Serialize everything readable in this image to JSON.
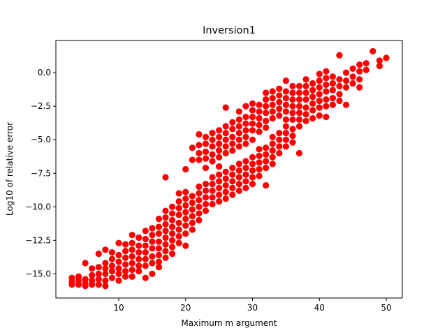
{
  "chart_data": {
    "type": "scatter",
    "title": "Inversion1",
    "xlabel": "Maximum m argument",
    "ylabel": "Log10 of relative error",
    "xlim": [
      0.6,
      52.4
    ],
    "ylim": [
      -16.8,
      2.4
    ],
    "x_ticks": [
      10,
      20,
      30,
      40,
      50
    ],
    "x_tick_labels": [
      "10",
      "20",
      "30",
      "40",
      "50"
    ],
    "y_ticks": [
      -15.0,
      -12.5,
      -10.0,
      -7.5,
      -5.0,
      -2.5,
      0.0
    ],
    "y_tick_labels": [
      "−15.0",
      "−12.5",
      "−10.0",
      "−7.5",
      "−5.0",
      "−2.5",
      "0.0"
    ],
    "grid": false,
    "marker_color": "#ff0000",
    "points": [
      {
        "x": 3,
        "y": -15.3
      },
      {
        "x": 3,
        "y": -15.6
      },
      {
        "x": 3,
        "y": -15.8
      },
      {
        "x": 4,
        "y": -15.2
      },
      {
        "x": 4,
        "y": -15.5
      },
      {
        "x": 4,
        "y": -15.8
      },
      {
        "x": 5,
        "y": -14.2
      },
      {
        "x": 5,
        "y": -15.4
      },
      {
        "x": 5,
        "y": -15.7
      },
      {
        "x": 5,
        "y": -15.9
      },
      {
        "x": 6,
        "y": -14.6
      },
      {
        "x": 6,
        "y": -15.1
      },
      {
        "x": 6,
        "y": -15.5
      },
      {
        "x": 6,
        "y": -15.8
      },
      {
        "x": 7,
        "y": -13.5
      },
      {
        "x": 7,
        "y": -14.5
      },
      {
        "x": 7,
        "y": -15.0
      },
      {
        "x": 7,
        "y": -15.4
      },
      {
        "x": 7,
        "y": -15.8
      },
      {
        "x": 8,
        "y": -13.2
      },
      {
        "x": 8,
        "y": -14.2
      },
      {
        "x": 8,
        "y": -14.6
      },
      {
        "x": 8,
        "y": -15.0
      },
      {
        "x": 8,
        "y": -15.5
      },
      {
        "x": 8,
        "y": -15.9
      },
      {
        "x": 9,
        "y": -13.4
      },
      {
        "x": 9,
        "y": -13.9
      },
      {
        "x": 9,
        "y": -14.4
      },
      {
        "x": 9,
        "y": -14.8
      },
      {
        "x": 9,
        "y": -15.3
      },
      {
        "x": 10,
        "y": -12.7
      },
      {
        "x": 10,
        "y": -13.6
      },
      {
        "x": 10,
        "y": -14.1
      },
      {
        "x": 10,
        "y": -14.6
      },
      {
        "x": 10,
        "y": -15.0
      },
      {
        "x": 10,
        "y": -15.5
      },
      {
        "x": 11,
        "y": -12.8
      },
      {
        "x": 11,
        "y": -13.3
      },
      {
        "x": 11,
        "y": -13.8
      },
      {
        "x": 11,
        "y": -14.3
      },
      {
        "x": 11,
        "y": -14.8
      },
      {
        "x": 11,
        "y": -15.2
      },
      {
        "x": 12,
        "y": -12.1
      },
      {
        "x": 12,
        "y": -12.7
      },
      {
        "x": 12,
        "y": -13.2
      },
      {
        "x": 12,
        "y": -13.7
      },
      {
        "x": 12,
        "y": -14.2
      },
      {
        "x": 12,
        "y": -14.7
      },
      {
        "x": 12,
        "y": -15.2
      },
      {
        "x": 13,
        "y": -12.3
      },
      {
        "x": 13,
        "y": -12.9
      },
      {
        "x": 13,
        "y": -13.4
      },
      {
        "x": 13,
        "y": -13.9
      },
      {
        "x": 13,
        "y": -14.4
      },
      {
        "x": 13,
        "y": -14.8
      },
      {
        "x": 14,
        "y": -11.8
      },
      {
        "x": 14,
        "y": -12.4
      },
      {
        "x": 14,
        "y": -12.9
      },
      {
        "x": 14,
        "y": -13.4
      },
      {
        "x": 14,
        "y": -13.9
      },
      {
        "x": 14,
        "y": -14.4
      },
      {
        "x": 14,
        "y": -15.3
      },
      {
        "x": 15,
        "y": -11.6
      },
      {
        "x": 15,
        "y": -12.1
      },
      {
        "x": 15,
        "y": -12.6
      },
      {
        "x": 15,
        "y": -13.1
      },
      {
        "x": 15,
        "y": -13.7
      },
      {
        "x": 15,
        "y": -14.2
      },
      {
        "x": 15,
        "y": -15.0
      },
      {
        "x": 16,
        "y": -10.9
      },
      {
        "x": 16,
        "y": -11.5
      },
      {
        "x": 16,
        "y": -12.0
      },
      {
        "x": 16,
        "y": -12.6
      },
      {
        "x": 16,
        "y": -13.1
      },
      {
        "x": 16,
        "y": -13.6
      },
      {
        "x": 16,
        "y": -14.1
      },
      {
        "x": 16,
        "y": -14.5
      },
      {
        "x": 17,
        "y": -7.8
      },
      {
        "x": 17,
        "y": -10.3
      },
      {
        "x": 17,
        "y": -10.8
      },
      {
        "x": 17,
        "y": -11.3
      },
      {
        "x": 17,
        "y": -11.8
      },
      {
        "x": 17,
        "y": -12.3
      },
      {
        "x": 17,
        "y": -12.8
      },
      {
        "x": 17,
        "y": -13.3
      },
      {
        "x": 17,
        "y": -13.8
      },
      {
        "x": 18,
        "y": -10.0
      },
      {
        "x": 18,
        "y": -10.5
      },
      {
        "x": 18,
        "y": -11.0
      },
      {
        "x": 18,
        "y": -11.5
      },
      {
        "x": 18,
        "y": -12.0
      },
      {
        "x": 18,
        "y": -12.5
      },
      {
        "x": 18,
        "y": -13.0
      },
      {
        "x": 18,
        "y": -13.5
      },
      {
        "x": 19,
        "y": -9.0
      },
      {
        "x": 19,
        "y": -9.6
      },
      {
        "x": 19,
        "y": -10.1
      },
      {
        "x": 19,
        "y": -10.6
      },
      {
        "x": 19,
        "y": -11.2
      },
      {
        "x": 19,
        "y": -11.7
      },
      {
        "x": 19,
        "y": -12.2
      },
      {
        "x": 19,
        "y": -12.7
      },
      {
        "x": 20,
        "y": -7.2
      },
      {
        "x": 20,
        "y": -8.9
      },
      {
        "x": 20,
        "y": -9.4
      },
      {
        "x": 20,
        "y": -9.9
      },
      {
        "x": 20,
        "y": -10.4
      },
      {
        "x": 20,
        "y": -10.9
      },
      {
        "x": 20,
        "y": -11.4
      },
      {
        "x": 20,
        "y": -12.0
      },
      {
        "x": 20,
        "y": -12.9
      },
      {
        "x": 21,
        "y": -5.6
      },
      {
        "x": 21,
        "y": -6.5
      },
      {
        "x": 21,
        "y": -9.2
      },
      {
        "x": 21,
        "y": -9.7
      },
      {
        "x": 21,
        "y": -10.2
      },
      {
        "x": 21,
        "y": -10.7
      },
      {
        "x": 21,
        "y": -11.2
      },
      {
        "x": 21,
        "y": -11.7
      },
      {
        "x": 22,
        "y": -4.6
      },
      {
        "x": 22,
        "y": -5.4
      },
      {
        "x": 22,
        "y": -6.0
      },
      {
        "x": 22,
        "y": -6.5
      },
      {
        "x": 22,
        "y": -8.5
      },
      {
        "x": 22,
        "y": -9.0
      },
      {
        "x": 22,
        "y": -9.5
      },
      {
        "x": 22,
        "y": -10.0
      },
      {
        "x": 22,
        "y": -10.5
      },
      {
        "x": 22,
        "y": -11.0
      },
      {
        "x": 23,
        "y": -4.8
      },
      {
        "x": 23,
        "y": -5.3
      },
      {
        "x": 23,
        "y": -5.9
      },
      {
        "x": 23,
        "y": -6.4
      },
      {
        "x": 23,
        "y": -7.1
      },
      {
        "x": 23,
        "y": -8.3
      },
      {
        "x": 23,
        "y": -8.8
      },
      {
        "x": 23,
        "y": -9.3
      },
      {
        "x": 23,
        "y": -9.8
      },
      {
        "x": 23,
        "y": -10.3
      },
      {
        "x": 24,
        "y": -4.5
      },
      {
        "x": 24,
        "y": -5.0
      },
      {
        "x": 24,
        "y": -5.5
      },
      {
        "x": 24,
        "y": -6.1
      },
      {
        "x": 24,
        "y": -6.6
      },
      {
        "x": 24,
        "y": -7.8
      },
      {
        "x": 24,
        "y": -8.3
      },
      {
        "x": 24,
        "y": -8.8
      },
      {
        "x": 24,
        "y": -9.3
      },
      {
        "x": 24,
        "y": -9.8
      },
      {
        "x": 25,
        "y": -4.3
      },
      {
        "x": 25,
        "y": -4.8
      },
      {
        "x": 25,
        "y": -5.3
      },
      {
        "x": 25,
        "y": -5.8
      },
      {
        "x": 25,
        "y": -6.3
      },
      {
        "x": 25,
        "y": -7.0
      },
      {
        "x": 25,
        "y": -7.6
      },
      {
        "x": 25,
        "y": -8.1
      },
      {
        "x": 25,
        "y": -8.6
      },
      {
        "x": 25,
        "y": -9.1
      },
      {
        "x": 25,
        "y": -9.6
      },
      {
        "x": 26,
        "y": -2.6
      },
      {
        "x": 26,
        "y": -4.0
      },
      {
        "x": 26,
        "y": -4.5
      },
      {
        "x": 26,
        "y": -5.0
      },
      {
        "x": 26,
        "y": -5.5
      },
      {
        "x": 26,
        "y": -6.0
      },
      {
        "x": 26,
        "y": -7.4
      },
      {
        "x": 26,
        "y": -7.9
      },
      {
        "x": 26,
        "y": -8.4
      },
      {
        "x": 26,
        "y": -8.9
      },
      {
        "x": 26,
        "y": -9.4
      },
      {
        "x": 27,
        "y": -3.7
      },
      {
        "x": 27,
        "y": -4.2
      },
      {
        "x": 27,
        "y": -4.8
      },
      {
        "x": 27,
        "y": -5.3
      },
      {
        "x": 27,
        "y": -5.8
      },
      {
        "x": 27,
        "y": -7.1
      },
      {
        "x": 27,
        "y": -7.6
      },
      {
        "x": 27,
        "y": -8.1
      },
      {
        "x": 27,
        "y": -8.6
      },
      {
        "x": 27,
        "y": -9.1
      },
      {
        "x": 28,
        "y": -2.9
      },
      {
        "x": 28,
        "y": -3.5
      },
      {
        "x": 28,
        "y": -4.0
      },
      {
        "x": 28,
        "y": -4.5
      },
      {
        "x": 28,
        "y": -5.0
      },
      {
        "x": 28,
        "y": -5.5
      },
      {
        "x": 28,
        "y": -6.8
      },
      {
        "x": 28,
        "y": -7.3
      },
      {
        "x": 28,
        "y": -7.8
      },
      {
        "x": 28,
        "y": -8.3
      },
      {
        "x": 28,
        "y": -8.8
      },
      {
        "x": 29,
        "y": -2.5
      },
      {
        "x": 29,
        "y": -3.3
      },
      {
        "x": 29,
        "y": -3.8
      },
      {
        "x": 29,
        "y": -4.3
      },
      {
        "x": 29,
        "y": -4.8
      },
      {
        "x": 29,
        "y": -5.3
      },
      {
        "x": 29,
        "y": -6.6
      },
      {
        "x": 29,
        "y": -7.1
      },
      {
        "x": 29,
        "y": -7.6
      },
      {
        "x": 29,
        "y": -8.1
      },
      {
        "x": 29,
        "y": -8.6
      },
      {
        "x": 30,
        "y": -2.3
      },
      {
        "x": 30,
        "y": -2.8
      },
      {
        "x": 30,
        "y": -3.3
      },
      {
        "x": 30,
        "y": -3.8
      },
      {
        "x": 30,
        "y": -4.3
      },
      {
        "x": 30,
        "y": -5.0
      },
      {
        "x": 30,
        "y": -6.3
      },
      {
        "x": 30,
        "y": -6.8
      },
      {
        "x": 30,
        "y": -7.3
      },
      {
        "x": 30,
        "y": -7.8
      },
      {
        "x": 30,
        "y": -8.3
      },
      {
        "x": 31,
        "y": -2.4
      },
      {
        "x": 31,
        "y": -2.9
      },
      {
        "x": 31,
        "y": -3.4
      },
      {
        "x": 31,
        "y": -3.9
      },
      {
        "x": 31,
        "y": -4.4
      },
      {
        "x": 31,
        "y": -5.7
      },
      {
        "x": 31,
        "y": -6.2
      },
      {
        "x": 31,
        "y": -6.7
      },
      {
        "x": 31,
        "y": -7.2
      },
      {
        "x": 31,
        "y": -7.7
      },
      {
        "x": 32,
        "y": -1.5
      },
      {
        "x": 32,
        "y": -2.0
      },
      {
        "x": 32,
        "y": -2.5
      },
      {
        "x": 32,
        "y": -3.0
      },
      {
        "x": 32,
        "y": -3.6
      },
      {
        "x": 32,
        "y": -4.1
      },
      {
        "x": 32,
        "y": -5.6
      },
      {
        "x": 32,
        "y": -6.1
      },
      {
        "x": 32,
        "y": -6.6
      },
      {
        "x": 32,
        "y": -7.1
      },
      {
        "x": 32,
        "y": -8.4
      },
      {
        "x": 33,
        "y": -1.4
      },
      {
        "x": 33,
        "y": -1.9
      },
      {
        "x": 33,
        "y": -2.4
      },
      {
        "x": 33,
        "y": -2.9
      },
      {
        "x": 33,
        "y": -3.4
      },
      {
        "x": 33,
        "y": -4.8
      },
      {
        "x": 33,
        "y": -5.3
      },
      {
        "x": 33,
        "y": -5.8
      },
      {
        "x": 33,
        "y": -6.3
      },
      {
        "x": 33,
        "y": -6.8
      },
      {
        "x": 34,
        "y": -1.2
      },
      {
        "x": 34,
        "y": -1.7
      },
      {
        "x": 34,
        "y": -2.2
      },
      {
        "x": 34,
        "y": -2.7
      },
      {
        "x": 34,
        "y": -3.2
      },
      {
        "x": 34,
        "y": -4.5
      },
      {
        "x": 34,
        "y": -5.0
      },
      {
        "x": 34,
        "y": -5.5
      },
      {
        "x": 34,
        "y": -6.0
      },
      {
        "x": 35,
        "y": -0.6
      },
      {
        "x": 35,
        "y": -1.4
      },
      {
        "x": 35,
        "y": -1.9
      },
      {
        "x": 35,
        "y": -2.4
      },
      {
        "x": 35,
        "y": -2.9
      },
      {
        "x": 35,
        "y": -3.5
      },
      {
        "x": 35,
        "y": -4.0
      },
      {
        "x": 35,
        "y": -4.5
      },
      {
        "x": 35,
        "y": -5.0
      },
      {
        "x": 35,
        "y": -5.5
      },
      {
        "x": 36,
        "y": -1.0
      },
      {
        "x": 36,
        "y": -1.5
      },
      {
        "x": 36,
        "y": -2.0
      },
      {
        "x": 36,
        "y": -2.5
      },
      {
        "x": 36,
        "y": -3.0
      },
      {
        "x": 36,
        "y": -3.5
      },
      {
        "x": 36,
        "y": -4.2
      },
      {
        "x": 36,
        "y": -4.7
      },
      {
        "x": 36,
        "y": -5.2
      },
      {
        "x": 37,
        "y": -1.0
      },
      {
        "x": 37,
        "y": -1.5
      },
      {
        "x": 37,
        "y": -2.0
      },
      {
        "x": 37,
        "y": -2.5
      },
      {
        "x": 37,
        "y": -3.0
      },
      {
        "x": 37,
        "y": -3.5
      },
      {
        "x": 37,
        "y": -4.0
      },
      {
        "x": 37,
        "y": -6.0
      },
      {
        "x": 38,
        "y": -0.5
      },
      {
        "x": 38,
        "y": -1.0
      },
      {
        "x": 38,
        "y": -1.5
      },
      {
        "x": 38,
        "y": -2.0
      },
      {
        "x": 38,
        "y": -2.6
      },
      {
        "x": 38,
        "y": -3.1
      },
      {
        "x": 38,
        "y": -3.6
      },
      {
        "x": 39,
        "y": -0.8
      },
      {
        "x": 39,
        "y": -1.3
      },
      {
        "x": 39,
        "y": -1.8
      },
      {
        "x": 39,
        "y": -2.3
      },
      {
        "x": 39,
        "y": -2.8
      },
      {
        "x": 39,
        "y": -3.4
      },
      {
        "x": 40,
        "y": -0.1
      },
      {
        "x": 40,
        "y": -0.6
      },
      {
        "x": 40,
        "y": -1.1
      },
      {
        "x": 40,
        "y": -1.6
      },
      {
        "x": 40,
        "y": -2.1
      },
      {
        "x": 40,
        "y": -2.6
      },
      {
        "x": 40,
        "y": -3.2
      },
      {
        "x": 41,
        "y": 0.1
      },
      {
        "x": 41,
        "y": -0.4
      },
      {
        "x": 41,
        "y": -0.9
      },
      {
        "x": 41,
        "y": -1.4
      },
      {
        "x": 41,
        "y": -2.0
      },
      {
        "x": 41,
        "y": -2.5
      },
      {
        "x": 41,
        "y": -3.3
      },
      {
        "x": 42,
        "y": -0.3
      },
      {
        "x": 42,
        "y": -0.8
      },
      {
        "x": 42,
        "y": -1.3
      },
      {
        "x": 42,
        "y": -1.9
      },
      {
        "x": 42,
        "y": -2.4
      },
      {
        "x": 43,
        "y": 1.3
      },
      {
        "x": 43,
        "y": -0.5
      },
      {
        "x": 43,
        "y": -1.0
      },
      {
        "x": 43,
        "y": -1.6
      },
      {
        "x": 43,
        "y": -2.1
      },
      {
        "x": 44,
        "y": 0.0
      },
      {
        "x": 44,
        "y": -0.6
      },
      {
        "x": 44,
        "y": -1.1
      },
      {
        "x": 44,
        "y": -2.4
      },
      {
        "x": 45,
        "y": 0.3
      },
      {
        "x": 45,
        "y": -0.3
      },
      {
        "x": 45,
        "y": -0.8
      },
      {
        "x": 46,
        "y": 0.6
      },
      {
        "x": 46,
        "y": 0.1
      },
      {
        "x": 46,
        "y": -0.5
      },
      {
        "x": 46,
        "y": -1.1
      },
      {
        "x": 47,
        "y": 0.7
      },
      {
        "x": 47,
        "y": 0.2
      },
      {
        "x": 48,
        "y": 1.6
      },
      {
        "x": 49,
        "y": 0.9
      },
      {
        "x": 49,
        "y": 0.5
      },
      {
        "x": 50,
        "y": 1.1
      }
    ]
  }
}
